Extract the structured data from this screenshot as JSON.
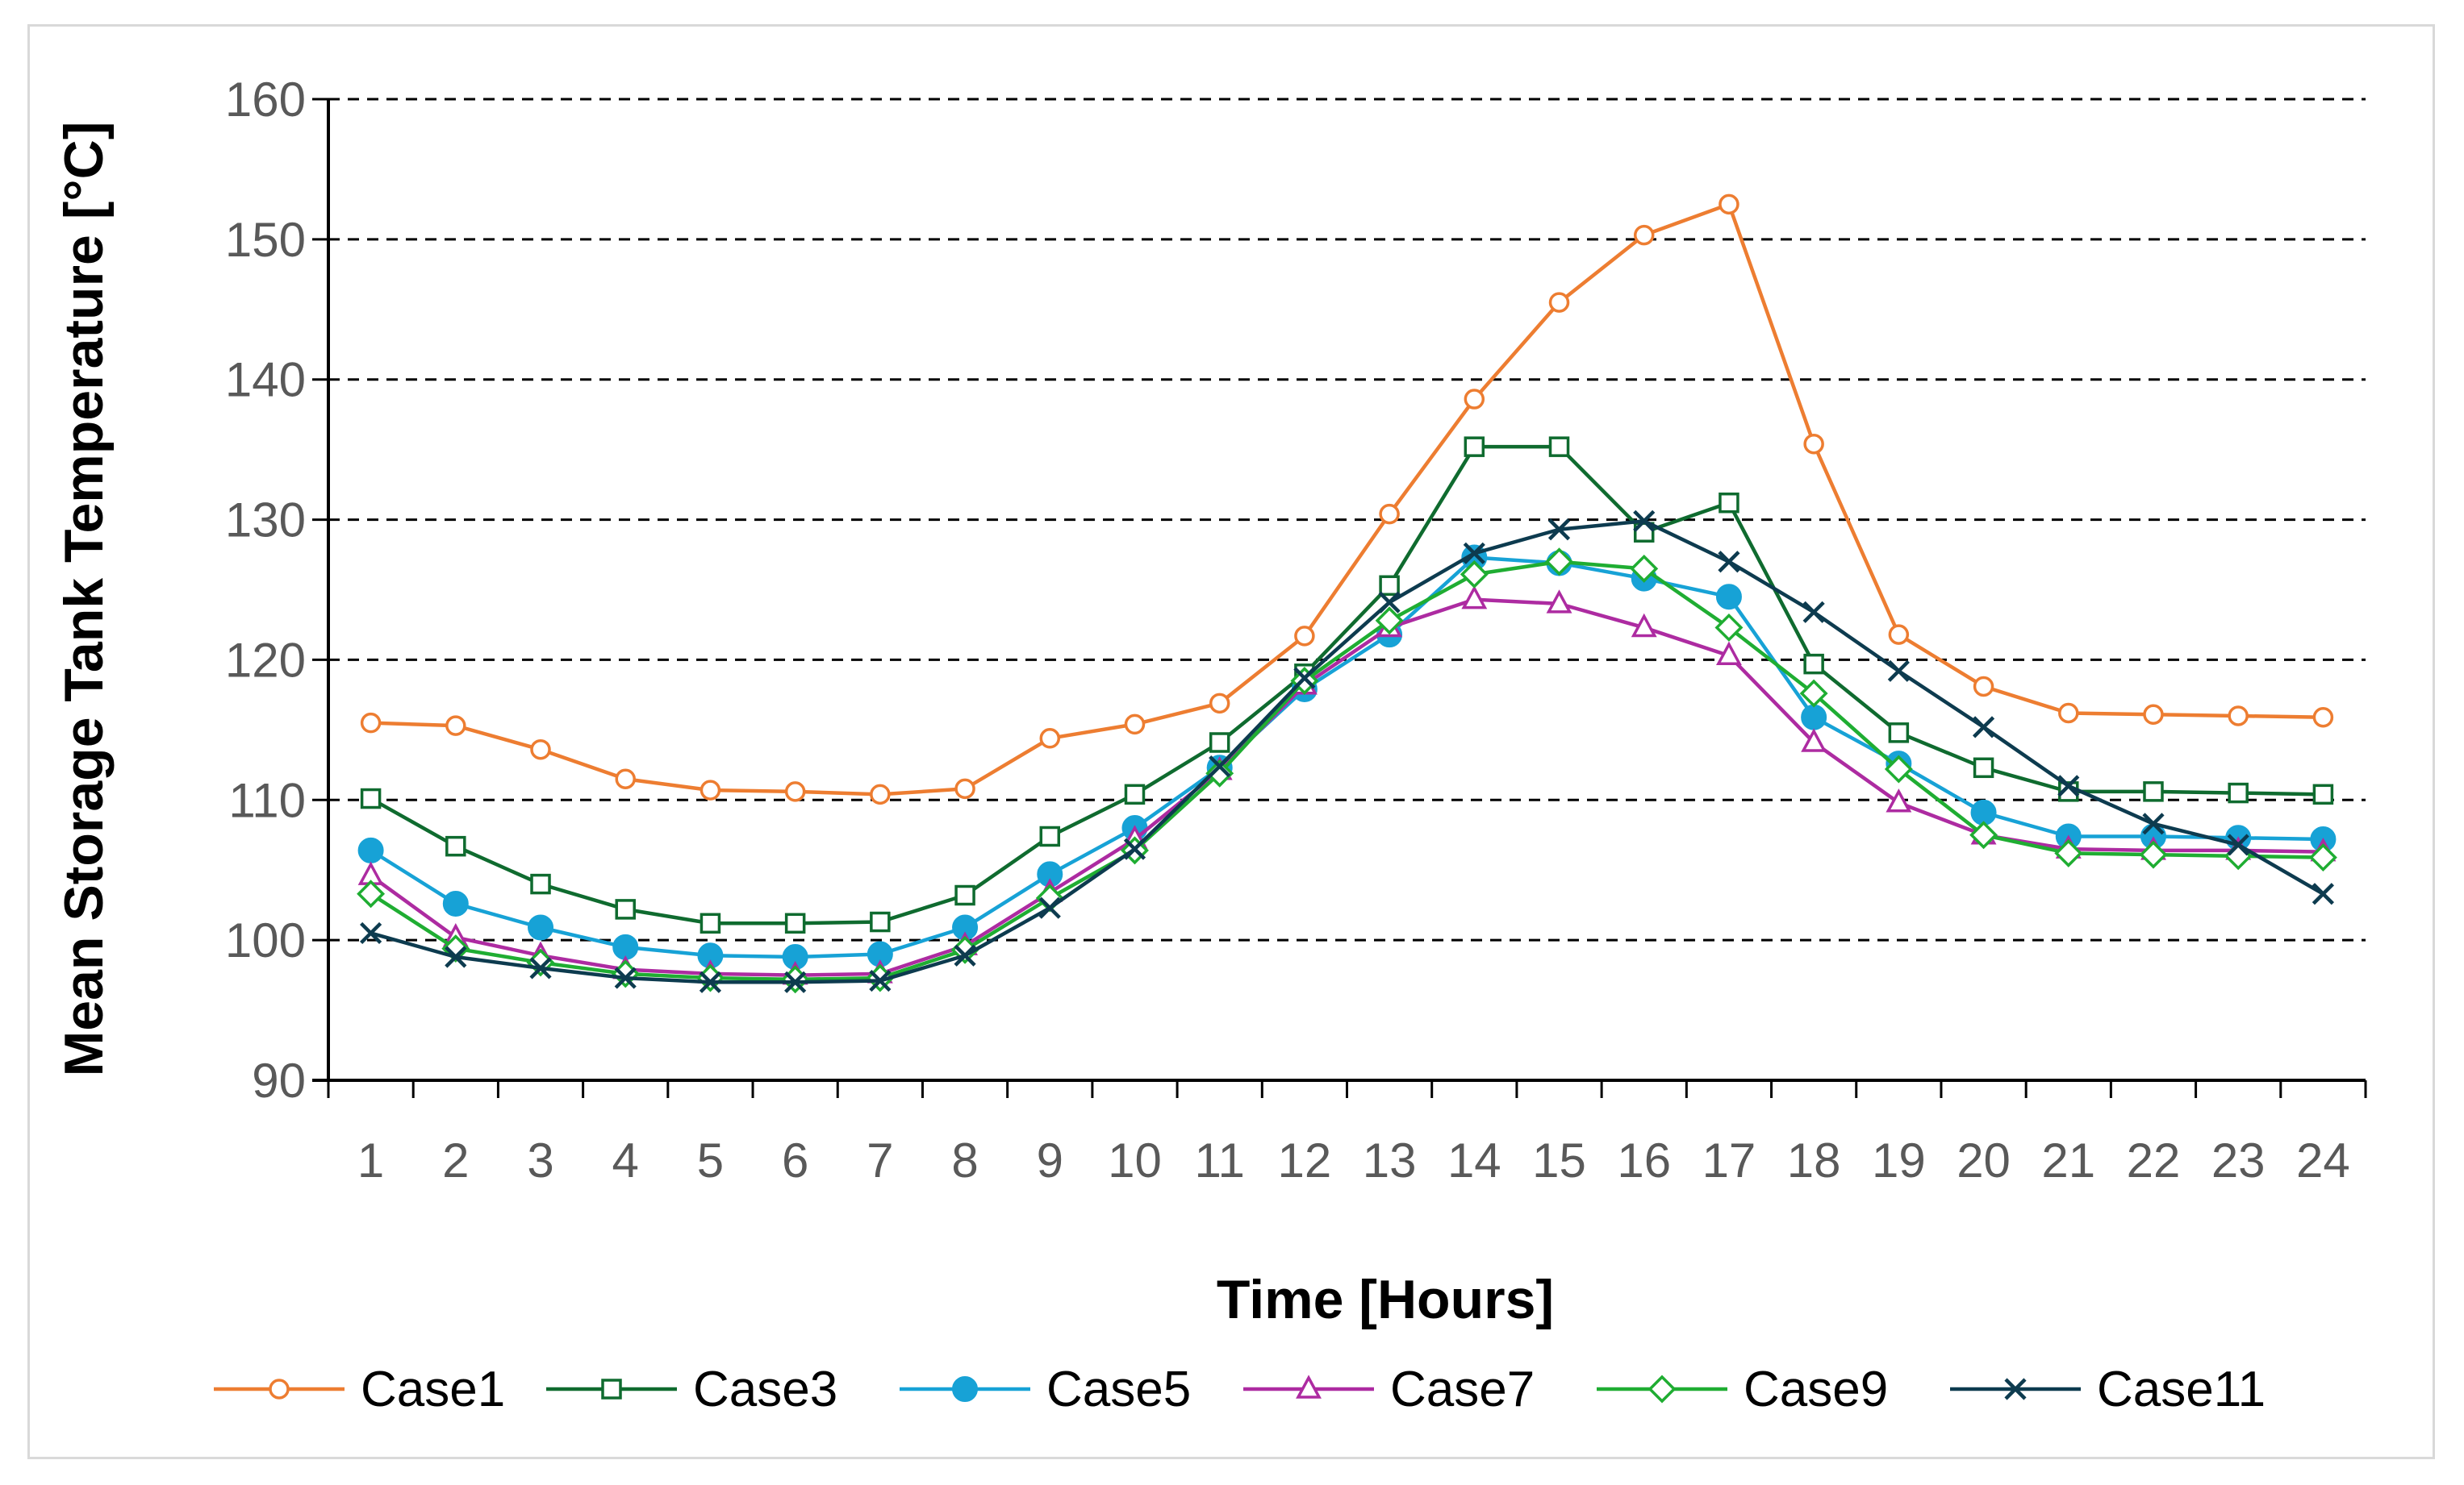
{
  "chart_data": {
    "type": "line",
    "title": "",
    "xlabel": "Time [Hours]",
    "ylabel": "Mean Storage Tank Temperature [°C]",
    "ylim": [
      90,
      160
    ],
    "yticks": [
      90,
      100,
      110,
      120,
      130,
      140,
      150,
      160
    ],
    "grid": "dashed horizontal",
    "legend_position": "bottom",
    "x": [
      1,
      2,
      3,
      4,
      5,
      6,
      7,
      8,
      9,
      10,
      11,
      12,
      13,
      14,
      15,
      16,
      17,
      18,
      19,
      20,
      21,
      22,
      23,
      24
    ],
    "series": [
      {
        "name": "Case1",
        "color": "#ed7d31",
        "marker": "circle-open",
        "values": [
          115.5,
          115.3,
          113.6,
          111.5,
          110.7,
          110.6,
          110.4,
          110.8,
          114.4,
          115.4,
          116.9,
          121.7,
          130.4,
          138.6,
          145.5,
          150.3,
          152.5,
          135.4,
          121.8,
          118.1,
          116.2,
          116.1,
          116.0,
          115.9
        ]
      },
      {
        "name": "Case3",
        "color": "#0f6b2f",
        "marker": "square-open",
        "values": [
          110.1,
          106.7,
          104.0,
          102.2,
          101.2,
          101.2,
          101.3,
          103.2,
          107.4,
          110.4,
          114.1,
          119.0,
          125.3,
          135.2,
          135.2,
          129.1,
          131.2,
          119.7,
          114.8,
          112.3,
          110.6,
          110.6,
          110.5,
          110.4
        ]
      },
      {
        "name": "Case5",
        "color": "#17a2d6",
        "marker": "circle-filled",
        "values": [
          106.4,
          102.6,
          100.9,
          99.5,
          98.9,
          98.8,
          99.0,
          100.9,
          104.7,
          108.0,
          112.3,
          117.9,
          121.8,
          127.3,
          126.9,
          125.8,
          124.5,
          115.9,
          112.6,
          109.1,
          107.4,
          107.4,
          107.3,
          107.2
        ]
      },
      {
        "name": "Case7",
        "color": "#ad2ba1",
        "marker": "triangle-open",
        "values": [
          104.6,
          100.2,
          98.9,
          97.9,
          97.6,
          97.5,
          97.6,
          99.6,
          103.4,
          107.2,
          112.1,
          118.2,
          122.3,
          124.3,
          124.0,
          122.3,
          120.3,
          114.1,
          109.8,
          107.5,
          106.5,
          106.4,
          106.4,
          106.3
        ]
      },
      {
        "name": "Case9",
        "color": "#1fad32",
        "marker": "diamond-open",
        "values": [
          103.3,
          99.4,
          98.4,
          97.6,
          97.3,
          97.2,
          97.3,
          99.3,
          103.0,
          106.4,
          111.9,
          118.5,
          122.8,
          126.1,
          127.0,
          126.5,
          122.3,
          117.6,
          112.2,
          107.5,
          106.2,
          106.1,
          106.0,
          105.9
        ]
      },
      {
        "name": "Case11",
        "color": "#0d3b4f",
        "marker": "x",
        "values": [
          100.5,
          98.8,
          98.0,
          97.3,
          97.0,
          97.0,
          97.1,
          98.9,
          102.3,
          106.5,
          112.4,
          118.7,
          124.1,
          127.6,
          129.3,
          129.9,
          127.0,
          123.4,
          119.2,
          115.2,
          111.0,
          108.3,
          106.8,
          103.3
        ]
      }
    ]
  }
}
